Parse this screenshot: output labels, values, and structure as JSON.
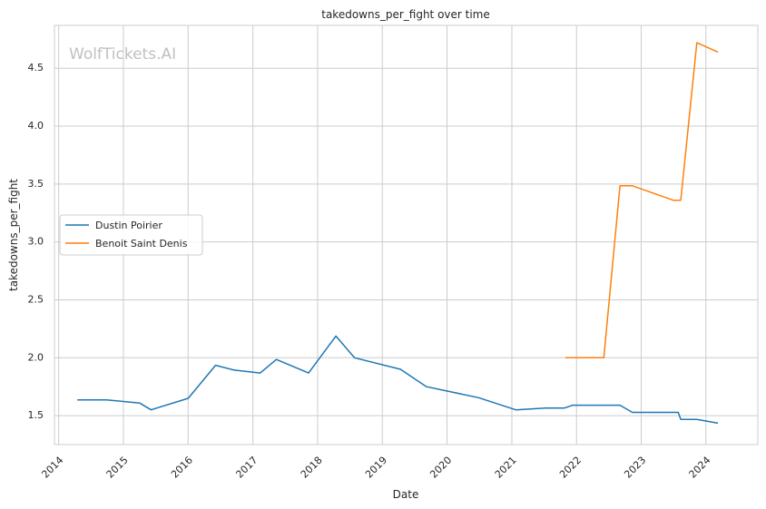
{
  "chart_data": {
    "type": "line",
    "title": "takedowns_per_fight over time",
    "xlabel": "Date",
    "ylabel": "takedowns_per_fight",
    "watermark": "WolfTickets.AI",
    "grid": true,
    "legend_position": "center-left",
    "x_ticks": [
      "2014",
      "2015",
      "2016",
      "2017",
      "2018",
      "2019",
      "2020",
      "2021",
      "2022",
      "2023",
      "2024"
    ],
    "y_ticks": [
      "1.5",
      "2.0",
      "2.5",
      "3.0",
      "3.5",
      "4.0",
      "4.5"
    ],
    "xlim": [
      "2013-12-08",
      "2024-10-20"
    ],
    "ylim": [
      1.25,
      4.87
    ],
    "series": [
      {
        "name": "Dustin Poirier",
        "color": "#1f77b4",
        "points": [
          [
            "2014-04-16",
            1.636
          ],
          [
            "2014-09-27",
            1.636
          ],
          [
            "2015-04-04",
            1.608
          ],
          [
            "2015-06-06",
            1.55
          ],
          [
            "2016-01-02",
            1.65
          ],
          [
            "2016-06-04",
            1.935
          ],
          [
            "2016-09-17",
            1.893
          ],
          [
            "2017-02-11",
            1.868
          ],
          [
            "2017-05-13",
            1.985
          ],
          [
            "2017-11-11",
            1.868
          ],
          [
            "2018-04-14",
            2.187
          ],
          [
            "2018-07-28",
            2.0
          ],
          [
            "2019-04-13",
            1.9
          ],
          [
            "2019-09-07",
            1.75
          ],
          [
            "2020-06-27",
            1.655
          ],
          [
            "2021-01-23",
            1.55
          ],
          [
            "2021-07-10",
            1.565
          ],
          [
            "2021-10-23",
            1.565
          ],
          [
            "2021-12-11",
            1.59
          ],
          [
            "2022-09-03",
            1.59
          ],
          [
            "2022-11-12",
            1.528
          ],
          [
            "2023-07-29",
            1.528
          ],
          [
            "2023-08-12",
            1.468
          ],
          [
            "2023-11-11",
            1.468
          ],
          [
            "2024-03-09",
            1.435
          ]
        ]
      },
      {
        "name": "Benoit Saint Denis",
        "color": "#ff7f0e",
        "points": [
          [
            "2021-10-30",
            2.0
          ],
          [
            "2022-06-04",
            2.0
          ],
          [
            "2022-09-03",
            3.485
          ],
          [
            "2022-11-12",
            3.485
          ],
          [
            "2023-07-01",
            3.36
          ],
          [
            "2023-08-12",
            3.36
          ],
          [
            "2023-11-11",
            4.72
          ],
          [
            "2024-03-09",
            4.64
          ]
        ]
      }
    ]
  }
}
